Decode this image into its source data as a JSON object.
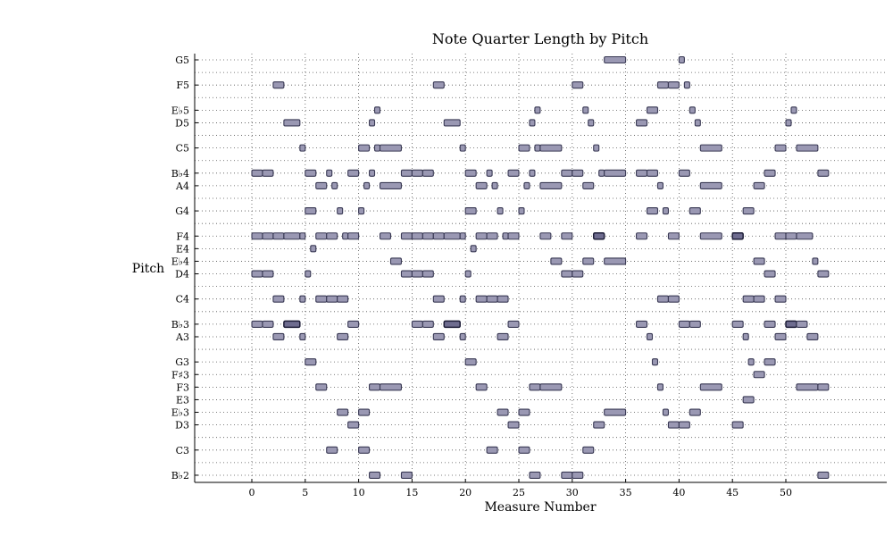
{
  "chart_data": {
    "type": "scatter",
    "title": "Note Quarter Length by Pitch",
    "xlabel": "Measure Number",
    "ylabel": "Pitch",
    "xlim": [
      -5,
      60
    ],
    "x_ticks": [
      0,
      5,
      10,
      15,
      20,
      25,
      30,
      35,
      40,
      45,
      50
    ],
    "grid": true,
    "pitch_rows": [
      {
        "label": "G5",
        "row": 0
      },
      {
        "label": "F5",
        "row": 2
      },
      {
        "label": "E♭5",
        "row": 4
      },
      {
        "label": "D5",
        "row": 5
      },
      {
        "label": "C5",
        "row": 7
      },
      {
        "label": "B♭4",
        "row": 9
      },
      {
        "label": "A4",
        "row": 10
      },
      {
        "label": "G4",
        "row": 12
      },
      {
        "label": "F4",
        "row": 14
      },
      {
        "label": "E4",
        "row": 15
      },
      {
        "label": "E♭4",
        "row": 16
      },
      {
        "label": "D4",
        "row": 17
      },
      {
        "label": "C4",
        "row": 19
      },
      {
        "label": "B♭3",
        "row": 21
      },
      {
        "label": "A3",
        "row": 22
      },
      {
        "label": "G3",
        "row": 24
      },
      {
        "label": "F♯3",
        "row": 25
      },
      {
        "label": "F3",
        "row": 26
      },
      {
        "label": "E3",
        "row": 27
      },
      {
        "label": "E♭3",
        "row": 28
      },
      {
        "label": "D3",
        "row": 29
      },
      {
        "label": "C3",
        "row": 31
      },
      {
        "label": "B♭2",
        "row": 33
      }
    ],
    "total_rows": 34,
    "notes": [
      {
        "pitch": "G5",
        "start": 33.0,
        "length": 2.0
      },
      {
        "pitch": "G5",
        "start": 40.0,
        "length": 0.5
      },
      {
        "pitch": "F5",
        "start": 2.0,
        "length": 1.0
      },
      {
        "pitch": "F5",
        "start": 17.0,
        "length": 1.0
      },
      {
        "pitch": "F5",
        "start": 30.0,
        "length": 1.0
      },
      {
        "pitch": "F5",
        "start": 38.0,
        "length": 1.0
      },
      {
        "pitch": "F5",
        "start": 39.0,
        "length": 1.0
      },
      {
        "pitch": "F5",
        "start": 40.5,
        "length": 0.5
      },
      {
        "pitch": "E♭5",
        "start": 11.5,
        "length": 0.5
      },
      {
        "pitch": "E♭5",
        "start": 26.5,
        "length": 0.5
      },
      {
        "pitch": "E♭5",
        "start": 31.0,
        "length": 0.5
      },
      {
        "pitch": "E♭5",
        "start": 37.0,
        "length": 1.0
      },
      {
        "pitch": "E♭5",
        "start": 41.0,
        "length": 0.5
      },
      {
        "pitch": "E♭5",
        "start": 50.5,
        "length": 0.5
      },
      {
        "pitch": "D5",
        "start": 3.0,
        "length": 1.5
      },
      {
        "pitch": "D5",
        "start": 11.0,
        "length": 0.5
      },
      {
        "pitch": "D5",
        "start": 18.0,
        "length": 1.5
      },
      {
        "pitch": "D5",
        "start": 26.0,
        "length": 0.5
      },
      {
        "pitch": "D5",
        "start": 31.5,
        "length": 0.5
      },
      {
        "pitch": "D5",
        "start": 36.0,
        "length": 1.0
      },
      {
        "pitch": "D5",
        "start": 41.5,
        "length": 0.5
      },
      {
        "pitch": "D5",
        "start": 50.0,
        "length": 0.5
      },
      {
        "pitch": "C5",
        "start": 4.5,
        "length": 0.5
      },
      {
        "pitch": "C5",
        "start": 10.0,
        "length": 1.0
      },
      {
        "pitch": "C5",
        "start": 11.5,
        "length": 0.5
      },
      {
        "pitch": "C5",
        "start": 12.0,
        "length": 2.0
      },
      {
        "pitch": "C5",
        "start": 19.5,
        "length": 0.5
      },
      {
        "pitch": "C5",
        "start": 25.0,
        "length": 1.0
      },
      {
        "pitch": "C5",
        "start": 26.5,
        "length": 0.5
      },
      {
        "pitch": "C5",
        "start": 27.0,
        "length": 2.0
      },
      {
        "pitch": "C5",
        "start": 32.0,
        "length": 0.5
      },
      {
        "pitch": "C5",
        "start": 42.0,
        "length": 2.0
      },
      {
        "pitch": "C5",
        "start": 49.0,
        "length": 1.0
      },
      {
        "pitch": "C5",
        "start": 51.0,
        "length": 2.0
      },
      {
        "pitch": "B♭4",
        "start": 0.0,
        "length": 1.0
      },
      {
        "pitch": "B♭4",
        "start": 1.0,
        "length": 1.0
      },
      {
        "pitch": "B♭4",
        "start": 5.0,
        "length": 1.0
      },
      {
        "pitch": "B♭4",
        "start": 7.0,
        "length": 0.5
      },
      {
        "pitch": "B♭4",
        "start": 9.0,
        "length": 1.0
      },
      {
        "pitch": "B♭4",
        "start": 11.0,
        "length": 0.5
      },
      {
        "pitch": "B♭4",
        "start": 14.0,
        "length": 1.0
      },
      {
        "pitch": "B♭4",
        "start": 15.0,
        "length": 1.0
      },
      {
        "pitch": "B♭4",
        "start": 16.0,
        "length": 1.0
      },
      {
        "pitch": "B♭4",
        "start": 20.0,
        "length": 1.0
      },
      {
        "pitch": "B♭4",
        "start": 22.0,
        "length": 0.5
      },
      {
        "pitch": "B♭4",
        "start": 24.0,
        "length": 1.0
      },
      {
        "pitch": "B♭4",
        "start": 26.0,
        "length": 0.5
      },
      {
        "pitch": "B♭4",
        "start": 29.0,
        "length": 1.0
      },
      {
        "pitch": "B♭4",
        "start": 30.0,
        "length": 1.0
      },
      {
        "pitch": "B♭4",
        "start": 32.5,
        "length": 0.5
      },
      {
        "pitch": "B♭4",
        "start": 33.0,
        "length": 2.0
      },
      {
        "pitch": "B♭4",
        "start": 36.0,
        "length": 1.0
      },
      {
        "pitch": "B♭4",
        "start": 37.0,
        "length": 1.0
      },
      {
        "pitch": "B♭4",
        "start": 40.0,
        "length": 1.0
      },
      {
        "pitch": "B♭4",
        "start": 48.0,
        "length": 1.0
      },
      {
        "pitch": "B♭4",
        "start": 53.0,
        "length": 1.0
      },
      {
        "pitch": "A4",
        "start": 6.0,
        "length": 1.0
      },
      {
        "pitch": "A4",
        "start": 7.5,
        "length": 0.5
      },
      {
        "pitch": "A4",
        "start": 10.5,
        "length": 0.5
      },
      {
        "pitch": "A4",
        "start": 12.0,
        "length": 2.0
      },
      {
        "pitch": "A4",
        "start": 21.0,
        "length": 1.0
      },
      {
        "pitch": "A4",
        "start": 22.5,
        "length": 0.5
      },
      {
        "pitch": "A4",
        "start": 25.5,
        "length": 0.5
      },
      {
        "pitch": "A4",
        "start": 27.0,
        "length": 2.0
      },
      {
        "pitch": "A4",
        "start": 31.0,
        "length": 1.0
      },
      {
        "pitch": "A4",
        "start": 38.0,
        "length": 0.5
      },
      {
        "pitch": "A4",
        "start": 42.0,
        "length": 2.0
      },
      {
        "pitch": "A4",
        "start": 47.0,
        "length": 1.0
      },
      {
        "pitch": "G4",
        "start": 5.0,
        "length": 1.0
      },
      {
        "pitch": "G4",
        "start": 8.0,
        "length": 0.5
      },
      {
        "pitch": "G4",
        "start": 10.0,
        "length": 0.5
      },
      {
        "pitch": "G4",
        "start": 20.0,
        "length": 1.0
      },
      {
        "pitch": "G4",
        "start": 23.0,
        "length": 0.5
      },
      {
        "pitch": "G4",
        "start": 25.0,
        "length": 0.5
      },
      {
        "pitch": "G4",
        "start": 37.0,
        "length": 1.0
      },
      {
        "pitch": "G4",
        "start": 38.5,
        "length": 0.5
      },
      {
        "pitch": "G4",
        "start": 41.0,
        "length": 1.0
      },
      {
        "pitch": "G4",
        "start": 46.0,
        "length": 1.0
      },
      {
        "pitch": "F4",
        "start": 0.0,
        "length": 1.0
      },
      {
        "pitch": "F4",
        "start": 1.0,
        "length": 1.0
      },
      {
        "pitch": "F4",
        "start": 2.0,
        "length": 1.0
      },
      {
        "pitch": "F4",
        "start": 3.0,
        "length": 1.5
      },
      {
        "pitch": "F4",
        "start": 4.5,
        "length": 0.5
      },
      {
        "pitch": "F4",
        "start": 6.0,
        "length": 1.0
      },
      {
        "pitch": "F4",
        "start": 7.0,
        "length": 1.0
      },
      {
        "pitch": "F4",
        "start": 8.5,
        "length": 0.5
      },
      {
        "pitch": "F4",
        "start": 9.0,
        "length": 1.0
      },
      {
        "pitch": "F4",
        "start": 12.0,
        "length": 1.0
      },
      {
        "pitch": "F4",
        "start": 14.0,
        "length": 1.0
      },
      {
        "pitch": "F4",
        "start": 15.0,
        "length": 1.0
      },
      {
        "pitch": "F4",
        "start": 16.0,
        "length": 1.0
      },
      {
        "pitch": "F4",
        "start": 17.0,
        "length": 1.0
      },
      {
        "pitch": "F4",
        "start": 18.0,
        "length": 1.5
      },
      {
        "pitch": "F4",
        "start": 19.5,
        "length": 0.5
      },
      {
        "pitch": "F4",
        "start": 21.0,
        "length": 1.0
      },
      {
        "pitch": "F4",
        "start": 22.0,
        "length": 1.0
      },
      {
        "pitch": "F4",
        "start": 23.5,
        "length": 0.5
      },
      {
        "pitch": "F4",
        "start": 24.0,
        "length": 1.0
      },
      {
        "pitch": "F4",
        "start": 27.0,
        "length": 1.0
      },
      {
        "pitch": "F4",
        "start": 29.0,
        "length": 1.0
      },
      {
        "pitch": "F4",
        "start": 32.0,
        "length": 1.0,
        "dense": true
      },
      {
        "pitch": "F4",
        "start": 36.0,
        "length": 1.0
      },
      {
        "pitch": "F4",
        "start": 39.0,
        "length": 1.0
      },
      {
        "pitch": "F4",
        "start": 42.0,
        "length": 2.0
      },
      {
        "pitch": "F4",
        "start": 45.0,
        "length": 1.0,
        "dense": true
      },
      {
        "pitch": "F4",
        "start": 49.0,
        "length": 1.0
      },
      {
        "pitch": "F4",
        "start": 50.0,
        "length": 1.0
      },
      {
        "pitch": "F4",
        "start": 51.0,
        "length": 1.5
      },
      {
        "pitch": "E4",
        "start": 5.5,
        "length": 0.5
      },
      {
        "pitch": "E4",
        "start": 20.5,
        "length": 0.5
      },
      {
        "pitch": "E♭4",
        "start": 13.0,
        "length": 1.0
      },
      {
        "pitch": "E♭4",
        "start": 28.0,
        "length": 1.0
      },
      {
        "pitch": "E♭4",
        "start": 31.0,
        "length": 1.0
      },
      {
        "pitch": "E♭4",
        "start": 33.0,
        "length": 2.0
      },
      {
        "pitch": "E♭4",
        "start": 47.0,
        "length": 1.0
      },
      {
        "pitch": "E♭4",
        "start": 52.5,
        "length": 0.5
      },
      {
        "pitch": "D4",
        "start": 0.0,
        "length": 1.0
      },
      {
        "pitch": "D4",
        "start": 1.0,
        "length": 1.0
      },
      {
        "pitch": "D4",
        "start": 5.0,
        "length": 0.5
      },
      {
        "pitch": "D4",
        "start": 14.0,
        "length": 1.0
      },
      {
        "pitch": "D4",
        "start": 15.0,
        "length": 1.0
      },
      {
        "pitch": "D4",
        "start": 16.0,
        "length": 1.0
      },
      {
        "pitch": "D4",
        "start": 20.0,
        "length": 0.5
      },
      {
        "pitch": "D4",
        "start": 29.0,
        "length": 1.0
      },
      {
        "pitch": "D4",
        "start": 30.0,
        "length": 1.0
      },
      {
        "pitch": "D4",
        "start": 48.0,
        "length": 1.0
      },
      {
        "pitch": "D4",
        "start": 53.0,
        "length": 1.0
      },
      {
        "pitch": "C4",
        "start": 2.0,
        "length": 1.0
      },
      {
        "pitch": "C4",
        "start": 4.5,
        "length": 0.5
      },
      {
        "pitch": "C4",
        "start": 6.0,
        "length": 1.0
      },
      {
        "pitch": "C4",
        "start": 7.0,
        "length": 1.0
      },
      {
        "pitch": "C4",
        "start": 8.0,
        "length": 1.0
      },
      {
        "pitch": "C4",
        "start": 17.0,
        "length": 1.0
      },
      {
        "pitch": "C4",
        "start": 19.5,
        "length": 0.5
      },
      {
        "pitch": "C4",
        "start": 21.0,
        "length": 1.0
      },
      {
        "pitch": "C4",
        "start": 22.0,
        "length": 1.0
      },
      {
        "pitch": "C4",
        "start": 23.0,
        "length": 1.0
      },
      {
        "pitch": "C4",
        "start": 38.0,
        "length": 1.0
      },
      {
        "pitch": "C4",
        "start": 39.0,
        "length": 1.0
      },
      {
        "pitch": "C4",
        "start": 46.0,
        "length": 1.0
      },
      {
        "pitch": "C4",
        "start": 47.0,
        "length": 1.0
      },
      {
        "pitch": "C4",
        "start": 49.0,
        "length": 1.0
      },
      {
        "pitch": "B♭3",
        "start": 0.0,
        "length": 1.0
      },
      {
        "pitch": "B♭3",
        "start": 1.0,
        "length": 1.0
      },
      {
        "pitch": "B♭3",
        "start": 3.0,
        "length": 1.5,
        "dense": true
      },
      {
        "pitch": "B♭3",
        "start": 9.0,
        "length": 1.0
      },
      {
        "pitch": "B♭3",
        "start": 15.0,
        "length": 1.0
      },
      {
        "pitch": "B♭3",
        "start": 16.0,
        "length": 1.0
      },
      {
        "pitch": "B♭3",
        "start": 18.0,
        "length": 1.5,
        "dense": true
      },
      {
        "pitch": "B♭3",
        "start": 24.0,
        "length": 1.0
      },
      {
        "pitch": "B♭3",
        "start": 36.0,
        "length": 1.0
      },
      {
        "pitch": "B♭3",
        "start": 40.0,
        "length": 1.0
      },
      {
        "pitch": "B♭3",
        "start": 41.0,
        "length": 1.0
      },
      {
        "pitch": "B♭3",
        "start": 45.0,
        "length": 1.0
      },
      {
        "pitch": "B♭3",
        "start": 48.0,
        "length": 1.0
      },
      {
        "pitch": "B♭3",
        "start": 50.0,
        "length": 1.0,
        "dense": true
      },
      {
        "pitch": "B♭3",
        "start": 51.0,
        "length": 1.0
      },
      {
        "pitch": "A3",
        "start": 2.0,
        "length": 1.0
      },
      {
        "pitch": "A3",
        "start": 4.5,
        "length": 0.5
      },
      {
        "pitch": "A3",
        "start": 8.0,
        "length": 1.0
      },
      {
        "pitch": "A3",
        "start": 17.0,
        "length": 1.0
      },
      {
        "pitch": "A3",
        "start": 19.5,
        "length": 0.5
      },
      {
        "pitch": "A3",
        "start": 23.0,
        "length": 1.0
      },
      {
        "pitch": "A3",
        "start": 37.0,
        "length": 0.5
      },
      {
        "pitch": "A3",
        "start": 46.0,
        "length": 0.5
      },
      {
        "pitch": "A3",
        "start": 49.0,
        "length": 1.0
      },
      {
        "pitch": "A3",
        "start": 52.0,
        "length": 1.0
      },
      {
        "pitch": "G3",
        "start": 5.0,
        "length": 1.0
      },
      {
        "pitch": "G3",
        "start": 20.0,
        "length": 1.0
      },
      {
        "pitch": "G3",
        "start": 37.5,
        "length": 0.5
      },
      {
        "pitch": "G3",
        "start": 46.5,
        "length": 0.5
      },
      {
        "pitch": "G3",
        "start": 48.0,
        "length": 1.0
      },
      {
        "pitch": "F♯3",
        "start": 47.0,
        "length": 1.0
      },
      {
        "pitch": "F3",
        "start": 6.0,
        "length": 1.0
      },
      {
        "pitch": "F3",
        "start": 11.0,
        "length": 1.0
      },
      {
        "pitch": "F3",
        "start": 12.0,
        "length": 2.0
      },
      {
        "pitch": "F3",
        "start": 21.0,
        "length": 1.0
      },
      {
        "pitch": "F3",
        "start": 26.0,
        "length": 1.0
      },
      {
        "pitch": "F3",
        "start": 27.0,
        "length": 2.0
      },
      {
        "pitch": "F3",
        "start": 38.0,
        "length": 0.5
      },
      {
        "pitch": "F3",
        "start": 42.0,
        "length": 2.0
      },
      {
        "pitch": "F3",
        "start": 51.0,
        "length": 2.0
      },
      {
        "pitch": "F3",
        "start": 53.0,
        "length": 1.0
      },
      {
        "pitch": "E3",
        "start": 46.0,
        "length": 1.0
      },
      {
        "pitch": "E♭3",
        "start": 8.0,
        "length": 1.0
      },
      {
        "pitch": "E♭3",
        "start": 10.0,
        "length": 1.0
      },
      {
        "pitch": "E♭3",
        "start": 23.0,
        "length": 1.0
      },
      {
        "pitch": "E♭3",
        "start": 25.0,
        "length": 1.0
      },
      {
        "pitch": "E♭3",
        "start": 33.0,
        "length": 2.0
      },
      {
        "pitch": "E♭3",
        "start": 38.5,
        "length": 0.5
      },
      {
        "pitch": "E♭3",
        "start": 41.0,
        "length": 1.0
      },
      {
        "pitch": "D3",
        "start": 9.0,
        "length": 1.0
      },
      {
        "pitch": "D3",
        "start": 24.0,
        "length": 1.0
      },
      {
        "pitch": "D3",
        "start": 32.0,
        "length": 1.0
      },
      {
        "pitch": "D3",
        "start": 39.0,
        "length": 1.0
      },
      {
        "pitch": "D3",
        "start": 40.0,
        "length": 1.0
      },
      {
        "pitch": "D3",
        "start": 45.0,
        "length": 1.0
      },
      {
        "pitch": "C3",
        "start": 7.0,
        "length": 1.0
      },
      {
        "pitch": "C3",
        "start": 10.0,
        "length": 1.0
      },
      {
        "pitch": "C3",
        "start": 22.0,
        "length": 1.0
      },
      {
        "pitch": "C3",
        "start": 25.0,
        "length": 1.0
      },
      {
        "pitch": "C3",
        "start": 31.0,
        "length": 1.0
      },
      {
        "pitch": "B♭2",
        "start": 11.0,
        "length": 1.0
      },
      {
        "pitch": "B♭2",
        "start": 14.0,
        "length": 1.0
      },
      {
        "pitch": "B♭2",
        "start": 26.0,
        "length": 1.0
      },
      {
        "pitch": "B♭2",
        "start": 29.0,
        "length": 1.0
      },
      {
        "pitch": "B♭2",
        "start": 30.0,
        "length": 1.0
      },
      {
        "pitch": "B♭2",
        "start": 53.0,
        "length": 1.0
      }
    ]
  }
}
